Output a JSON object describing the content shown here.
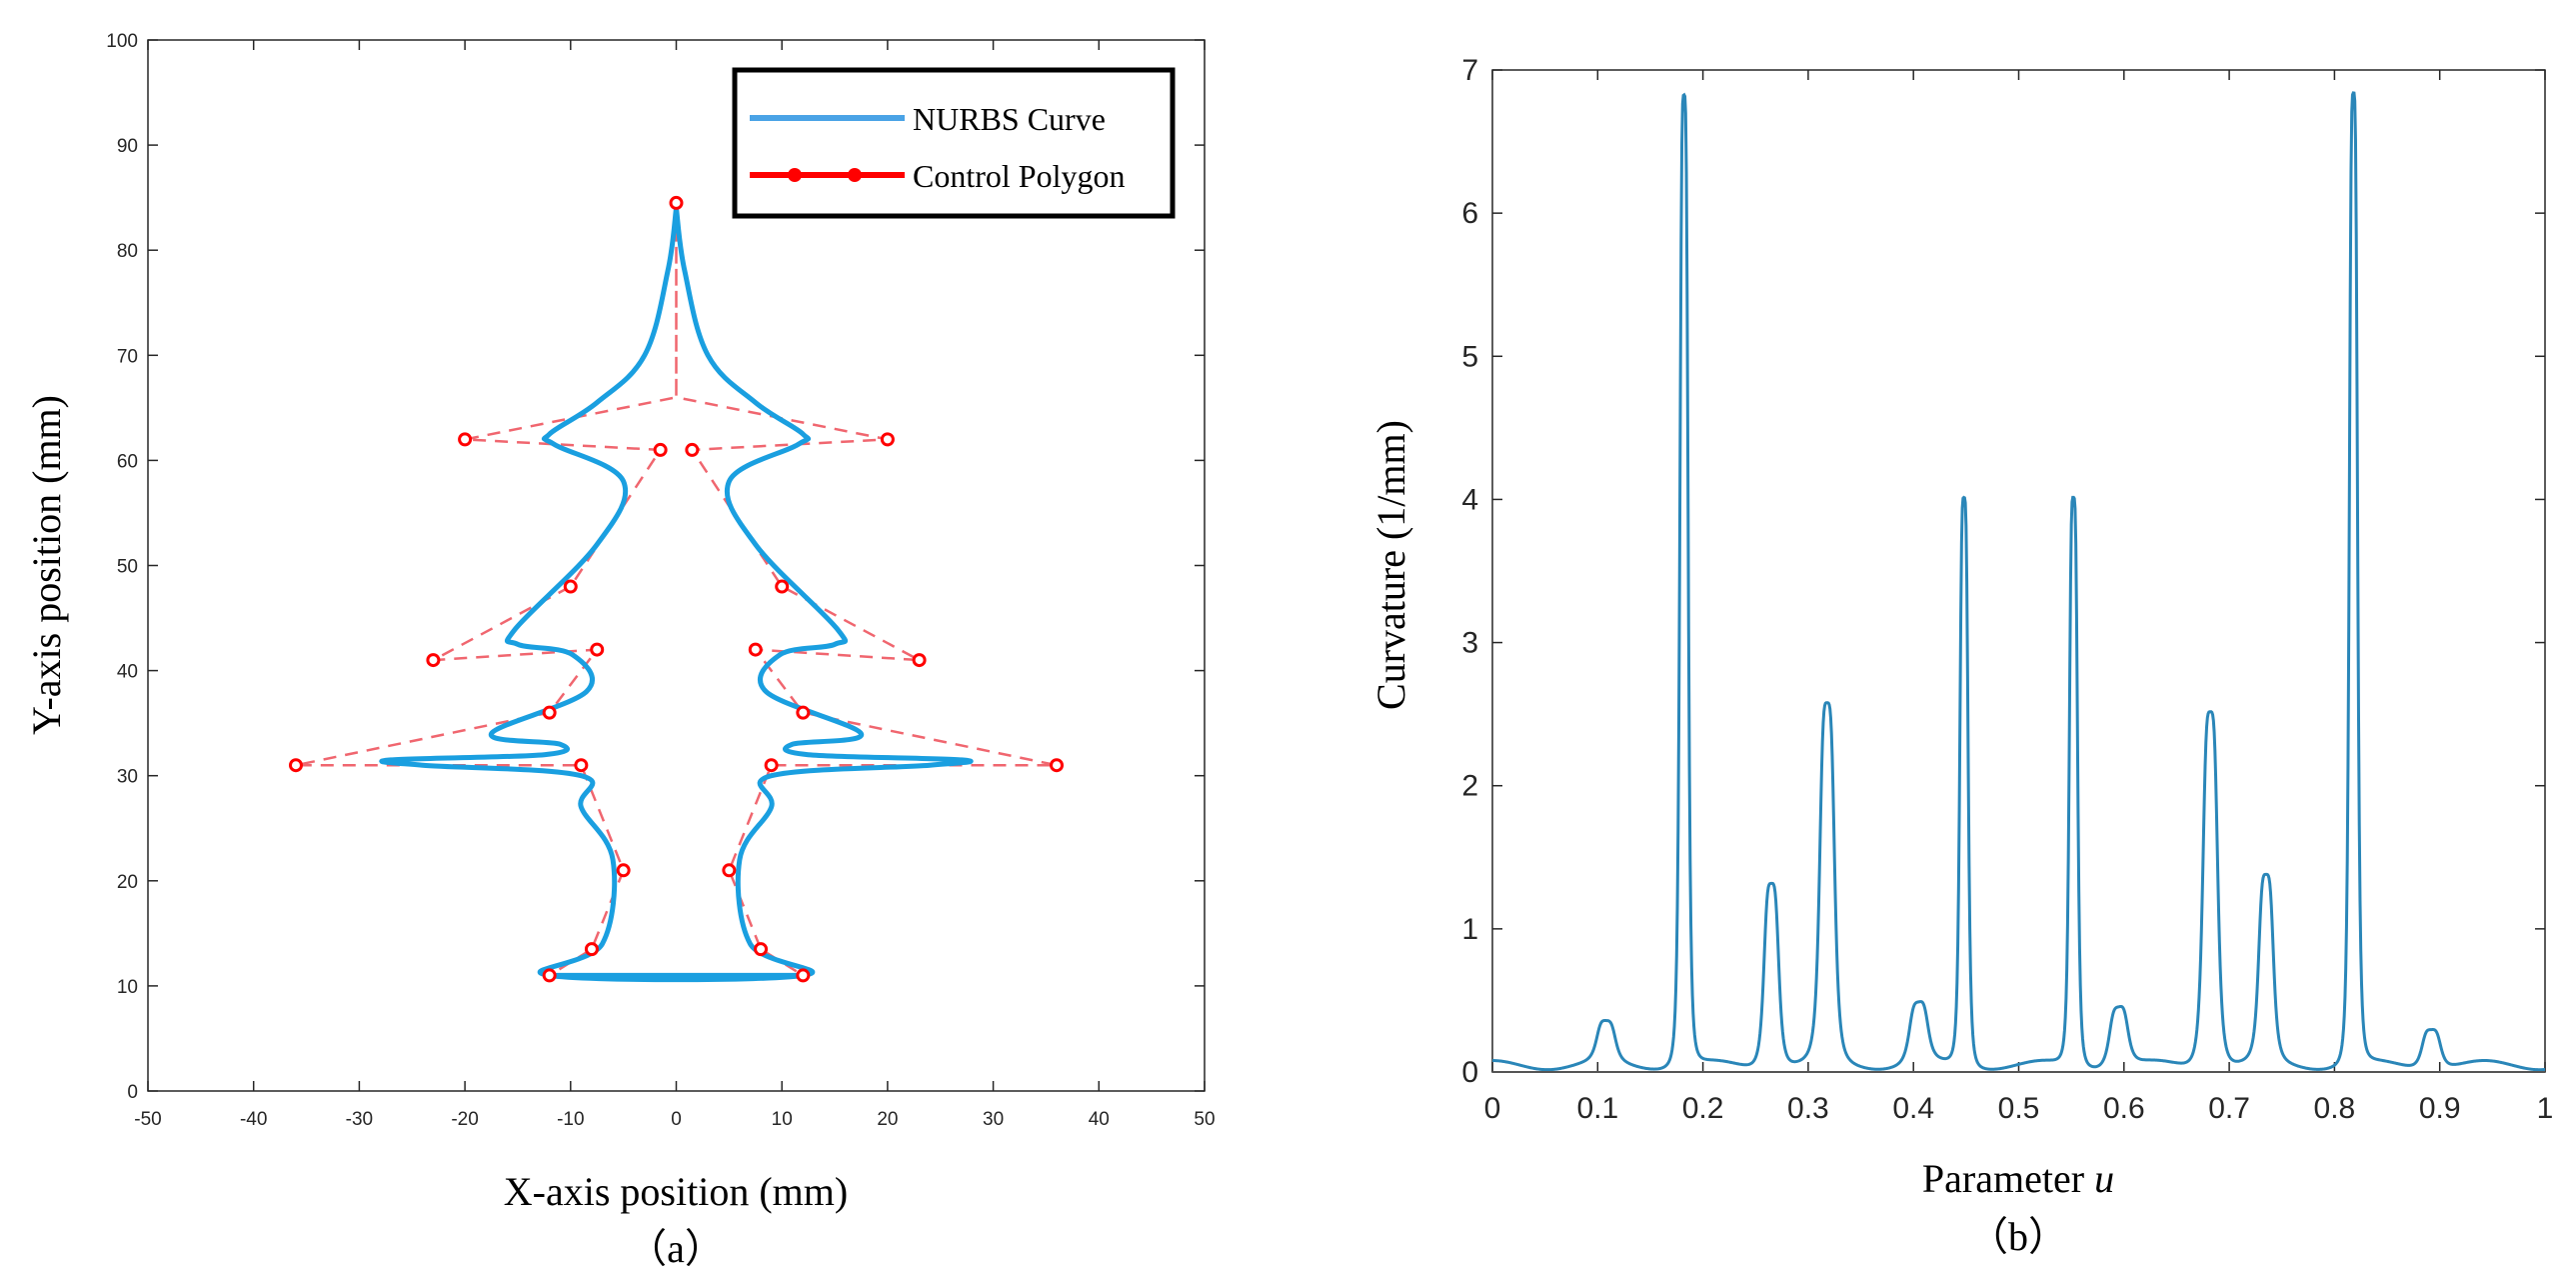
{
  "chart_data": [
    {
      "type": "line",
      "panel_label": "（a）",
      "xlabel": "X-axis position (mm)",
      "ylabel": "Y-axis position (mm)",
      "xlim": [
        -50,
        50
      ],
      "ylim": [
        0,
        100
      ],
      "xticks": [
        "-50",
        "-40",
        "-30",
        "-20",
        "-10",
        "0",
        "10",
        "20",
        "30",
        "40",
        "50"
      ],
      "yticks": [
        "0",
        "10",
        "20",
        "30",
        "40",
        "50",
        "60",
        "70",
        "80",
        "90",
        "100"
      ],
      "legend": [
        {
          "label": "NURBS Curve",
          "color": "#1a9fe0"
        },
        {
          "label": "Control Polygon",
          "color": "#ff0000"
        }
      ],
      "series": [
        {
          "name": "NURBS Curve",
          "color": "#1a9fe0",
          "x": [
            0,
            -0.8,
            -3,
            -7.5,
            -12,
            -11.5,
            -5,
            -7.5,
            -15.2,
            -15,
            -9.8,
            -8.5,
            -17.5,
            -11,
            -12.5,
            -27,
            -24,
            -9,
            -9,
            -6,
            -7,
            -12,
            12,
            7,
            6,
            9,
            9,
            24,
            27,
            12.5,
            11,
            17.5,
            8.5,
            9.8,
            15,
            15.2,
            7.5,
            5,
            11.5,
            12,
            7.5,
            3,
            0.8,
            0
          ],
          "y": [
            84,
            78,
            70,
            65.5,
            62.5,
            61.5,
            58,
            52,
            44,
            42.5,
            41.5,
            38,
            34,
            33,
            32,
            31.5,
            31,
            30,
            27,
            22,
            14,
            11,
            11,
            14,
            22,
            27,
            30,
            31,
            31.5,
            32,
            33,
            34,
            38,
            41.5,
            42.5,
            44,
            52,
            58,
            61.5,
            62.5,
            65.5,
            70,
            78,
            84
          ]
        },
        {
          "name": "Control Polygon",
          "color": "#ff0000",
          "x": [
            0,
            0,
            -20,
            -1.5,
            -10,
            -23,
            -7.5,
            -12,
            -36,
            -9,
            -5,
            -8,
            -12,
            12,
            8,
            5,
            9,
            36,
            12,
            7.5,
            23,
            10,
            1.5,
            20,
            0
          ],
          "y": [
            84.5,
            66,
            62,
            61,
            48,
            41,
            42,
            36,
            31,
            31,
            21,
            13.5,
            11,
            11,
            13.5,
            21,
            31,
            31,
            36,
            42,
            41,
            48,
            61,
            62,
            66
          ],
          "marker_indices": [
            0,
            2,
            3,
            4,
            5,
            6,
            7,
            8,
            9,
            10,
            11,
            12,
            13,
            14,
            15,
            16,
            17,
            18,
            19,
            20,
            21,
            22,
            23
          ]
        }
      ]
    },
    {
      "type": "line",
      "panel_label": "（b）",
      "xlabel_prefix": "Parameter ",
      "xlabel_var": "u",
      "ylabel": "Curvature (1/mm)",
      "xlim": [
        0,
        1
      ],
      "ylim": [
        0,
        7
      ],
      "xticks": [
        "0",
        "0.1",
        "0.2",
        "0.3",
        "0.4",
        "0.5",
        "0.6",
        "0.7",
        "0.8",
        "0.9",
        "1"
      ],
      "yticks": [
        "0",
        "1",
        "2",
        "3",
        "4",
        "5",
        "6",
        "7"
      ],
      "series": [
        {
          "name": "Curvature",
          "color": "#2a86b8",
          "baseline": 0.08,
          "peaks": [
            {
              "u": 0.108,
              "k": 0.28
            },
            {
              "u": 0.182,
              "k": 6.78
            },
            {
              "u": 0.265,
              "k": 1.3
            },
            {
              "u": 0.318,
              "k": 2.5
            },
            {
              "u": 0.405,
              "k": 0.42
            },
            {
              "u": 0.448,
              "k": 3.97
            },
            {
              "u": 0.552,
              "k": 3.97
            },
            {
              "u": 0.595,
              "k": 0.42
            },
            {
              "u": 0.682,
              "k": 2.5
            },
            {
              "u": 0.735,
              "k": 1.3
            },
            {
              "u": 0.818,
              "k": 6.78
            },
            {
              "u": 0.892,
              "k": 0.28
            }
          ]
        }
      ]
    }
  ]
}
